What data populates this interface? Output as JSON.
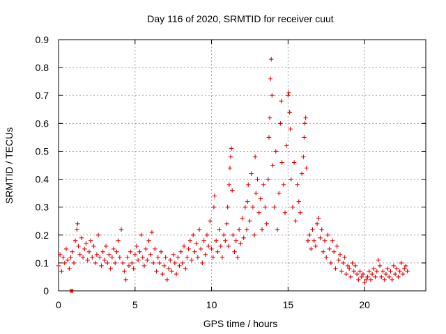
{
  "colors": {
    "series": "#e00000",
    "grid": "#a0a0a0",
    "axis": "#000000"
  },
  "chart_data": {
    "type": "scatter",
    "title": "Day 116 of 2020, SRMTID for receiver cuut",
    "xlabel": "GPS time / hours",
    "ylabel": "SRMTID / TECUs",
    "xlim": [
      0,
      24
    ],
    "ylim": [
      0,
      0.9
    ],
    "xticks": [
      0,
      5,
      10,
      15,
      20
    ],
    "xtick_labels": [
      "0",
      "5",
      "10",
      "15",
      "20"
    ],
    "yticks": [
      0,
      0.1,
      0.2,
      0.3,
      0.4,
      0.5,
      0.6,
      0.7,
      0.8,
      0.9
    ],
    "ytick_labels": [
      "0",
      "0.1",
      "0.2",
      "0.3",
      "0.4",
      "0.5",
      "0.6",
      "0.7",
      "0.8",
      "0.9"
    ],
    "grid": true,
    "marker": "+",
    "series": [
      {
        "name": "SRMTID",
        "points": [
          [
            0.0,
            0.09
          ],
          [
            0.1,
            0.13
          ],
          [
            0.2,
            0.07
          ],
          [
            0.3,
            0.12
          ],
          [
            0.4,
            0.1
          ],
          [
            0.5,
            0.15
          ],
          [
            0.6,
            0.11
          ],
          [
            0.7,
            0.08
          ],
          [
            0.8,
            0.12
          ],
          [
            0.9,
            0.14
          ],
          [
            1.0,
            0.1
          ],
          [
            1.1,
            0.18
          ],
          [
            1.2,
            0.22
          ],
          [
            1.25,
            0.24
          ],
          [
            1.3,
            0.16
          ],
          [
            1.4,
            0.13
          ],
          [
            1.5,
            0.19
          ],
          [
            1.6,
            0.12
          ],
          [
            1.7,
            0.15
          ],
          [
            1.8,
            0.17
          ],
          [
            1.9,
            0.11
          ],
          [
            2.0,
            0.14
          ],
          [
            2.1,
            0.18
          ],
          [
            2.2,
            0.12
          ],
          [
            2.3,
            0.16
          ],
          [
            2.4,
            0.1
          ],
          [
            2.5,
            0.13
          ],
          [
            2.6,
            0.2
          ],
          [
            2.7,
            0.12
          ],
          [
            2.8,
            0.09
          ],
          [
            2.9,
            0.14
          ],
          [
            3.0,
            0.11
          ],
          [
            3.1,
            0.16
          ],
          [
            3.2,
            0.1
          ],
          [
            3.3,
            0.13
          ],
          [
            3.4,
            0.08
          ],
          [
            3.5,
            0.12
          ],
          [
            3.6,
            0.15
          ],
          [
            3.7,
            0.1
          ],
          [
            3.8,
            0.14
          ],
          [
            3.9,
            0.18
          ],
          [
            4.0,
            0.12
          ],
          [
            4.1,
            0.22
          ],
          [
            4.2,
            0.1
          ],
          [
            4.3,
            0.07
          ],
          [
            4.4,
            0.04
          ],
          [
            4.5,
            0.12
          ],
          [
            4.6,
            0.09
          ],
          [
            4.7,
            0.14
          ],
          [
            4.8,
            0.1
          ],
          [
            4.9,
            0.08
          ],
          [
            5.0,
            0.13
          ],
          [
            5.1,
            0.16
          ],
          [
            5.2,
            0.11
          ],
          [
            5.3,
            0.14
          ],
          [
            5.4,
            0.2
          ],
          [
            5.5,
            0.12
          ],
          [
            5.6,
            0.09
          ],
          [
            5.7,
            0.15
          ],
          [
            5.8,
            0.11
          ],
          [
            5.9,
            0.18
          ],
          [
            6.0,
            0.13
          ],
          [
            6.1,
            0.21
          ],
          [
            6.2,
            0.1
          ],
          [
            6.3,
            0.15
          ],
          [
            6.4,
            0.07
          ],
          [
            6.5,
            0.12
          ],
          [
            6.6,
            0.1
          ],
          [
            6.7,
            0.14
          ],
          [
            6.8,
            0.06
          ],
          [
            6.9,
            0.09
          ],
          [
            7.0,
            0.12
          ],
          [
            7.1,
            0.04
          ],
          [
            7.2,
            0.08
          ],
          [
            7.3,
            0.11
          ],
          [
            7.4,
            0.07
          ],
          [
            7.5,
            0.13
          ],
          [
            7.6,
            0.1
          ],
          [
            7.7,
            0.06
          ],
          [
            7.8,
            0.12
          ],
          [
            7.9,
            0.09
          ],
          [
            8.0,
            0.14
          ],
          [
            8.1,
            0.1
          ],
          [
            8.2,
            0.16
          ],
          [
            8.3,
            0.08
          ],
          [
            8.4,
            0.12
          ],
          [
            8.5,
            0.15
          ],
          [
            8.6,
            0.18
          ],
          [
            8.7,
            0.11
          ],
          [
            8.8,
            0.2
          ],
          [
            8.9,
            0.14
          ],
          [
            9.0,
            0.17
          ],
          [
            9.1,
            0.12
          ],
          [
            9.2,
            0.22
          ],
          [
            9.3,
            0.15
          ],
          [
            9.4,
            0.1
          ],
          [
            9.5,
            0.18
          ],
          [
            9.6,
            0.13
          ],
          [
            9.7,
            0.2
          ],
          [
            9.8,
            0.16
          ],
          [
            9.9,
            0.25
          ],
          [
            10.0,
            0.15
          ],
          [
            10.1,
            0.12
          ],
          [
            10.15,
            0.3
          ],
          [
            10.2,
            0.34
          ],
          [
            10.3,
            0.18
          ],
          [
            10.4,
            0.14
          ],
          [
            10.5,
            0.22
          ],
          [
            10.6,
            0.16
          ],
          [
            10.7,
            0.12
          ],
          [
            10.8,
            0.2
          ],
          [
            10.9,
            0.18
          ],
          [
            11.0,
            0.24
          ],
          [
            11.05,
            0.3
          ],
          [
            11.1,
            0.16
          ],
          [
            11.15,
            0.38
          ],
          [
            11.2,
            0.44
          ],
          [
            11.25,
            0.48
          ],
          [
            11.3,
            0.51
          ],
          [
            11.35,
            0.36
          ],
          [
            11.4,
            0.2
          ],
          [
            11.5,
            0.14
          ],
          [
            11.6,
            0.18
          ],
          [
            11.7,
            0.12
          ],
          [
            11.8,
            0.22
          ],
          [
            11.9,
            0.17
          ],
          [
            12.0,
            0.26
          ],
          [
            12.1,
            0.19
          ],
          [
            12.2,
            0.3
          ],
          [
            12.3,
            0.22
          ],
          [
            12.35,
            0.32
          ],
          [
            12.4,
            0.38
          ],
          [
            12.5,
            0.25
          ],
          [
            12.6,
            0.42
          ],
          [
            12.7,
            0.3
          ],
          [
            12.8,
            0.2
          ],
          [
            12.85,
            0.48
          ],
          [
            12.9,
            0.35
          ],
          [
            13.0,
            0.4
          ],
          [
            13.1,
            0.28
          ],
          [
            13.2,
            0.33
          ],
          [
            13.3,
            0.22
          ],
          [
            13.4,
            0.38
          ],
          [
            13.5,
            0.3
          ],
          [
            13.6,
            0.24
          ],
          [
            13.7,
            0.4
          ],
          [
            13.75,
            0.55
          ],
          [
            13.8,
            0.62
          ],
          [
            13.85,
            0.76
          ],
          [
            13.9,
            0.83
          ],
          [
            13.95,
            0.7
          ],
          [
            14.0,
            0.45
          ],
          [
            14.1,
            0.3
          ],
          [
            14.2,
            0.5
          ],
          [
            14.3,
            0.22
          ],
          [
            14.4,
            0.35
          ],
          [
            14.5,
            0.6
          ],
          [
            14.55,
            0.68
          ],
          [
            14.6,
            0.46
          ],
          [
            14.7,
            0.38
          ],
          [
            14.8,
            0.28
          ],
          [
            14.9,
            0.52
          ],
          [
            15.0,
            0.7
          ],
          [
            15.05,
            0.71
          ],
          [
            15.1,
            0.64
          ],
          [
            15.15,
            0.58
          ],
          [
            15.2,
            0.4
          ],
          [
            15.3,
            0.3
          ],
          [
            15.4,
            0.46
          ],
          [
            15.5,
            0.25
          ],
          [
            15.6,
            0.38
          ],
          [
            15.7,
            0.32
          ],
          [
            15.8,
            0.28
          ],
          [
            15.9,
            0.42
          ],
          [
            16.0,
            0.48
          ],
          [
            16.05,
            0.55
          ],
          [
            16.1,
            0.6
          ],
          [
            16.15,
            0.62
          ],
          [
            16.2,
            0.44
          ],
          [
            16.3,
            0.18
          ],
          [
            16.4,
            0.2
          ],
          [
            16.5,
            0.15
          ],
          [
            16.6,
            0.22
          ],
          [
            16.7,
            0.18
          ],
          [
            16.8,
            0.16
          ],
          [
            16.9,
            0.24
          ],
          [
            17.0,
            0.26
          ],
          [
            17.1,
            0.19
          ],
          [
            17.2,
            0.22
          ],
          [
            17.3,
            0.14
          ],
          [
            17.4,
            0.18
          ],
          [
            17.5,
            0.12
          ],
          [
            17.6,
            0.2
          ],
          [
            17.7,
            0.15
          ],
          [
            17.8,
            0.1
          ],
          [
            17.9,
            0.18
          ],
          [
            18.0,
            0.14
          ],
          [
            18.1,
            0.08
          ],
          [
            18.2,
            0.16
          ],
          [
            18.3,
            0.11
          ],
          [
            18.4,
            0.13
          ],
          [
            18.5,
            0.07
          ],
          [
            18.6,
            0.1
          ],
          [
            18.7,
            0.12
          ],
          [
            18.8,
            0.06
          ],
          [
            18.9,
            0.09
          ],
          [
            19.0,
            0.08
          ],
          [
            19.1,
            0.05
          ],
          [
            19.2,
            0.1
          ],
          [
            19.3,
            0.07
          ],
          [
            19.4,
            0.09
          ],
          [
            19.5,
            0.06
          ],
          [
            19.6,
            0.04
          ],
          [
            19.7,
            0.07
          ],
          [
            19.8,
            0.05
          ],
          [
            19.9,
            0.06
          ],
          [
            20.0,
            0.03
          ],
          [
            20.1,
            0.04
          ],
          [
            20.2,
            0.05
          ],
          [
            20.3,
            0.07
          ],
          [
            20.4,
            0.04
          ],
          [
            20.5,
            0.06
          ],
          [
            20.6,
            0.08
          ],
          [
            20.7,
            0.05
          ],
          [
            20.8,
            0.07
          ],
          [
            20.9,
            0.11
          ],
          [
            21.0,
            0.09
          ],
          [
            21.1,
            0.05
          ],
          [
            21.2,
            0.07
          ],
          [
            21.3,
            0.04
          ],
          [
            21.4,
            0.06
          ],
          [
            21.5,
            0.08
          ],
          [
            21.6,
            0.05
          ],
          [
            21.7,
            0.07
          ],
          [
            21.8,
            0.04
          ],
          [
            21.9,
            0.09
          ],
          [
            22.0,
            0.06
          ],
          [
            22.1,
            0.08
          ],
          [
            22.2,
            0.05
          ],
          [
            22.3,
            0.07
          ],
          [
            22.4,
            0.1
          ],
          [
            22.5,
            0.06
          ],
          [
            22.6,
            0.08
          ],
          [
            22.7,
            0.09
          ],
          [
            22.8,
            0.07
          ]
        ]
      }
    ],
    "outlier_square": [
      0.85,
      0.0
    ]
  }
}
